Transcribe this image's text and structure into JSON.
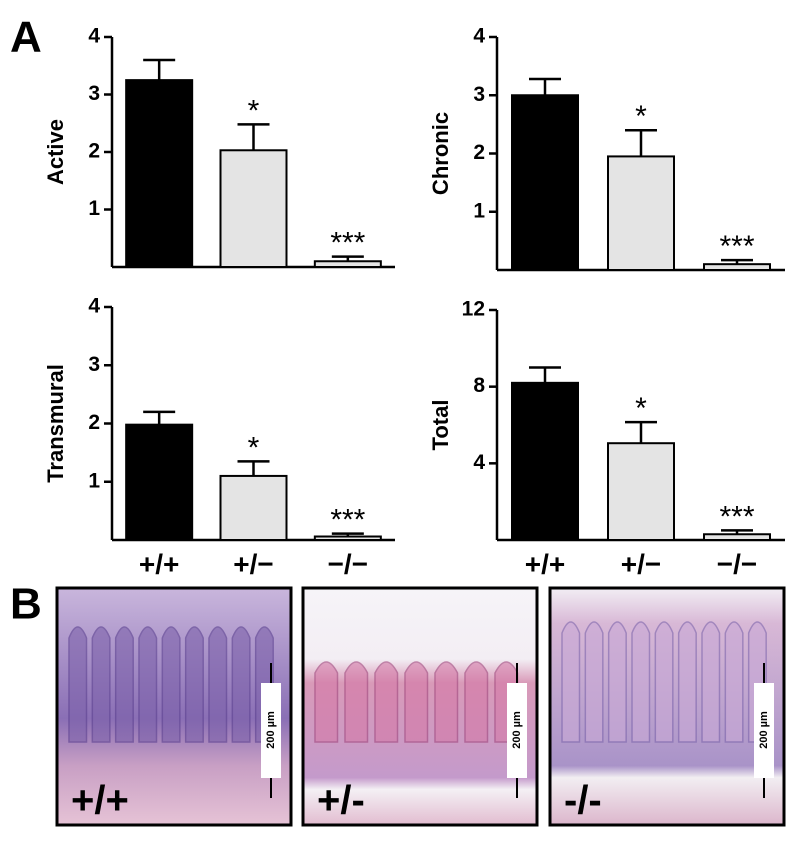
{
  "panel_labels": [
    "A",
    "B"
  ],
  "chart_data": [
    {
      "type": "bar",
      "ylabel": "Active",
      "categories": [
        null,
        null,
        null
      ],
      "values": [
        3.25,
        2.03,
        0.1
      ],
      "errors": [
        0.35,
        0.45,
        0.08
      ],
      "annotations": [
        null,
        "*",
        "***"
      ],
      "colors": [
        "#000000",
        "#e4e4e4",
        "#e4e4e4"
      ],
      "ylim": [
        0,
        4
      ],
      "yticks": [
        1,
        2,
        3,
        4
      ],
      "grid": false
    },
    {
      "type": "bar",
      "ylabel": "Chronic",
      "categories": [
        null,
        null,
        null
      ],
      "values": [
        3.0,
        1.95,
        0.1
      ],
      "errors": [
        0.28,
        0.45,
        0.07
      ],
      "annotations": [
        null,
        "*",
        "***"
      ],
      "colors": [
        "#000000",
        "#e4e4e4",
        "#e4e4e4"
      ],
      "ylim": [
        0,
        4
      ],
      "yticks": [
        1,
        2,
        3,
        4
      ],
      "grid": false
    },
    {
      "type": "bar",
      "ylabel": "Transmural",
      "categories": [
        "+/+",
        "+/−",
        "−/−"
      ],
      "values": [
        1.98,
        1.1,
        0.06
      ],
      "errors": [
        0.22,
        0.25,
        0.05
      ],
      "annotations": [
        null,
        "*",
        "***"
      ],
      "colors": [
        "#000000",
        "#e4e4e4",
        "#e4e4e4"
      ],
      "ylim": [
        0,
        4
      ],
      "yticks": [
        1,
        2,
        3,
        4
      ],
      "grid": false
    },
    {
      "type": "bar",
      "ylabel": "Total",
      "categories": [
        "+/+",
        "+/−",
        "−/−"
      ],
      "values": [
        8.2,
        5.05,
        0.3
      ],
      "errors": [
        0.8,
        1.1,
        0.2
      ],
      "annotations": [
        null,
        "*",
        "***"
      ],
      "colors": [
        "#000000",
        "#e4e4e4",
        "#e4e4e4"
      ],
      "ylim": [
        0,
        12
      ],
      "yticks": [
        4,
        8,
        12
      ],
      "grid": false
    }
  ],
  "images": [
    {
      "label": "+/+",
      "scale": "200 µm"
    },
    {
      "label": "+/-",
      "scale": "200 µm"
    },
    {
      "label": "-/-",
      "scale": "200 µm"
    }
  ]
}
